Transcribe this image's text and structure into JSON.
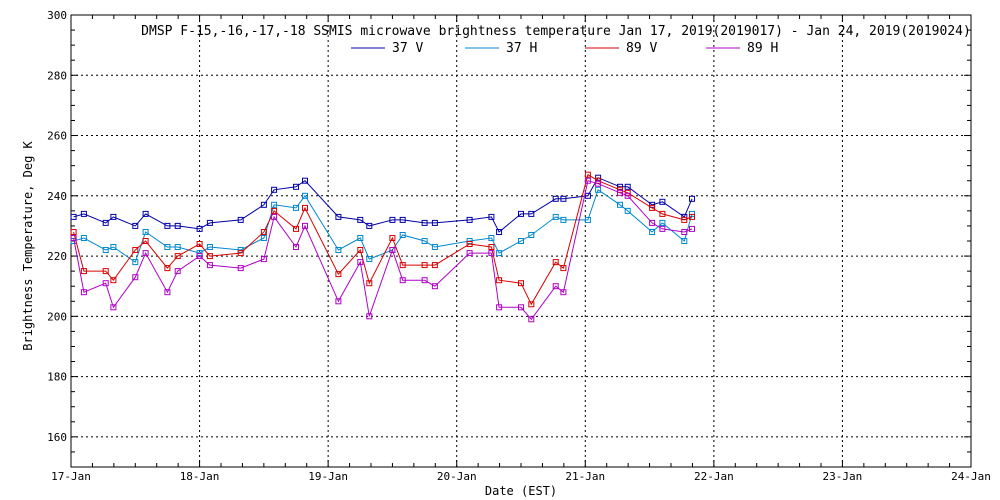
{
  "chart_data": {
    "type": "line",
    "title": "DMSP F-15,-16,-17,-18 SSMIS microwave brightness temperature Jan 17, 2019(2019017) - Jan 24, 2019(2019024)",
    "xlabel": "Date (EST)",
    "ylabel": "Brightness Temperature, Deg K",
    "xlim": [
      17,
      24
    ],
    "ylim": [
      150,
      300
    ],
    "x_ticks": [
      17,
      18,
      19,
      20,
      21,
      22,
      23,
      24
    ],
    "x_tick_labels": [
      "17-Jan",
      "18-Jan",
      "19-Jan",
      "20-Jan",
      "21-Jan",
      "22-Jan",
      "23-Jan",
      "24-Jan"
    ],
    "y_ticks": [
      160,
      180,
      200,
      220,
      240,
      260,
      280,
      300
    ],
    "y_tick_labels": [
      "160",
      "180",
      "200",
      "220",
      "240",
      "260",
      "280",
      "300"
    ],
    "grid": true,
    "legend": "top-center",
    "x": [
      17.02,
      17.1,
      17.27,
      17.33,
      17.5,
      17.58,
      17.75,
      17.83,
      18.0,
      18.08,
      18.32,
      18.5,
      18.58,
      18.75,
      18.82,
      19.08,
      19.25,
      19.32,
      19.5,
      19.58,
      19.75,
      19.83,
      20.1,
      20.27,
      20.33,
      20.5,
      20.58,
      20.77,
      20.83,
      21.02,
      21.1,
      21.27,
      21.33,
      21.52,
      21.6,
      21.77,
      21.83
    ],
    "series": [
      {
        "name": "37 V",
        "color": "#0000a8",
        "values": [
          233,
          234,
          231,
          233,
          230,
          234,
          230,
          230,
          229,
          231,
          232,
          237,
          242,
          243,
          245,
          233,
          232,
          230,
          232,
          232,
          231,
          231,
          232,
          233,
          228,
          234,
          234,
          239,
          239,
          240,
          246,
          243,
          243,
          237,
          238,
          233,
          239
        ]
      },
      {
        "name": "37 H",
        "color": "#0088d0",
        "values": [
          225,
          226,
          222,
          223,
          218,
          228,
          223,
          223,
          221,
          223,
          222,
          226,
          237,
          236,
          240,
          222,
          226,
          219,
          222,
          227,
          225,
          223,
          225,
          226,
          221,
          225,
          227,
          233,
          232,
          232,
          242,
          237,
          235,
          228,
          231,
          225,
          234
        ]
      },
      {
        "name": "89 V",
        "color": "#d80000",
        "values": [
          228,
          215,
          215,
          212,
          222,
          225,
          216,
          220,
          224,
          220,
          221,
          228,
          235,
          229,
          236,
          214,
          222,
          211,
          226,
          217,
          217,
          217,
          224,
          223,
          212,
          211,
          204,
          218,
          216,
          247,
          245,
          242,
          241,
          236,
          234,
          232,
          233
        ]
      },
      {
        "name": "89 H",
        "color": "#b000c8",
        "values": [
          226,
          208,
          211,
          203,
          213,
          221,
          208,
          215,
          220,
          217,
          216,
          219,
          233,
          223,
          230,
          205,
          218,
          200,
          222,
          212,
          212,
          210,
          221,
          221,
          203,
          203,
          199,
          210,
          208,
          245,
          244,
          241,
          240,
          231,
          229,
          228,
          229
        ]
      }
    ]
  }
}
